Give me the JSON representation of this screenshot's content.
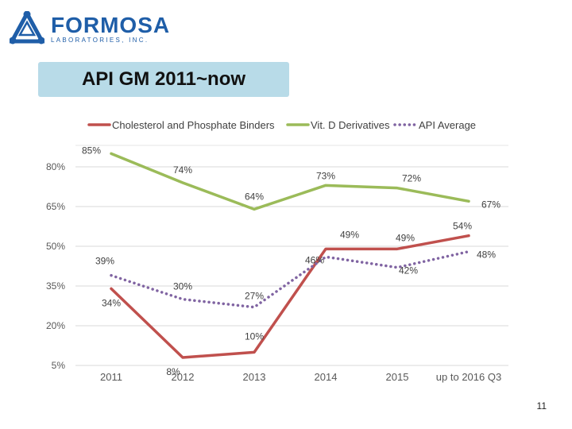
{
  "logo": {
    "word": "FORMOSA",
    "subtitle": "LABORATORIES, INC.",
    "icon": "formosa-logo-icon"
  },
  "slide": {
    "title": "API GM 2011~now",
    "page_number": "11"
  },
  "colors": {
    "cholesterol": "#c0504d",
    "vitd": "#9bbb59",
    "api_avg": "#8064a2",
    "title_bg": "#b8dbe8"
  },
  "chart_data": {
    "type": "line",
    "categories": [
      "2011",
      "2012",
      "2013",
      "2014",
      "2015",
      "up to 2016 Q3"
    ],
    "y_ticks": [
      "5%",
      "20%",
      "35%",
      "50%",
      "65%",
      "80%"
    ],
    "ylim": [
      5,
      85
    ],
    "legend_position": "top",
    "grid": true,
    "series": [
      {
        "name": "Cholesterol and Phosphate Binders",
        "key": "cholesterol",
        "style": "solid",
        "values": [
          34,
          8,
          10,
          49,
          49,
          54
        ],
        "labels": [
          "34%",
          "8%",
          "10%",
          "49%",
          "49%",
          "54%"
        ]
      },
      {
        "name": "Vit. D Derivatives",
        "key": "vitd",
        "style": "solid",
        "values": [
          85,
          74,
          64,
          73,
          72,
          67
        ],
        "labels": [
          "85%",
          "74%",
          "64%",
          "73%",
          "72%",
          "67%"
        ]
      },
      {
        "name": "API Average",
        "key": "api_avg",
        "style": "dotted",
        "values": [
          39,
          30,
          27,
          46,
          42,
          48
        ],
        "labels": [
          "39%",
          "30%",
          "27%",
          "46%",
          "42%",
          "48%"
        ]
      }
    ]
  }
}
